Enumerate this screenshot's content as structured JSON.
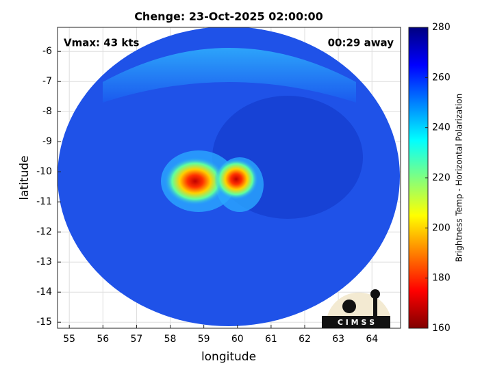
{
  "chart_data": {
    "type": "swath-image",
    "title": "Chenge: 23-Oct-2025 02:00:00",
    "annotations": [
      "Vmax: 43 kts",
      "00:29 away"
    ],
    "x_label": "longitude",
    "y_label": "latitude",
    "xlim": [
      54.65,
      64.85
    ],
    "ylim": [
      -15.2,
      -5.2
    ],
    "xticks": [
      55,
      56,
      57,
      58,
      59,
      60,
      61,
      62,
      63,
      64
    ],
    "yticks": [
      -6,
      -7,
      -8,
      -9,
      -10,
      -11,
      -12,
      -13,
      -14,
      -15
    ],
    "grid": true,
    "colorbar_label": "Brightness Temp - Horizontal Polarization",
    "clim": [
      160,
      280
    ],
    "cticks": [
      160,
      180,
      200,
      220,
      240,
      260,
      280
    ],
    "colormap": [
      "#800000",
      "#ff0000",
      "#ff8000",
      "#ffff00",
      "#80ff80",
      "#00ffff",
      "#0080ff",
      "#0000ff",
      "#000080"
    ],
    "logo_text": "C I M S S"
  }
}
